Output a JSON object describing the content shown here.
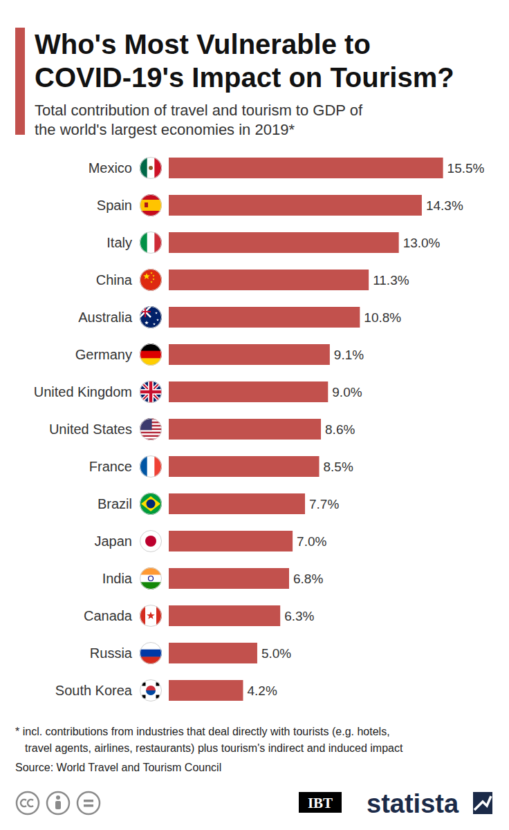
{
  "chart_data": {
    "type": "bar",
    "orientation": "horizontal",
    "title": [
      "Who's Most Vulnerable to",
      "COVID-19's Impact on Tourism?"
    ],
    "subtitle": [
      "Total contribution of travel and tourism to GDP of",
      "the world's largest economies in 2019*"
    ],
    "categories": [
      "Mexico",
      "Spain",
      "Italy",
      "China",
      "Australia",
      "Germany",
      "United Kingdom",
      "United States",
      "France",
      "Brazil",
      "Japan",
      "India",
      "Canada",
      "Russia",
      "South Korea"
    ],
    "values": [
      15.5,
      14.3,
      13.0,
      11.3,
      10.8,
      9.1,
      9.0,
      8.6,
      8.5,
      7.7,
      7.0,
      6.8,
      6.3,
      5.0,
      4.2
    ],
    "value_labels": [
      "15.5%",
      "14.3%",
      "13.0%",
      "11.3%",
      "10.8%",
      "9.1%",
      "9.0%",
      "8.6%",
      "8.5%",
      "7.7%",
      "7.0%",
      "6.8%",
      "6.3%",
      "5.0%",
      "4.2%"
    ],
    "color": "#c2514d",
    "xlim": [
      0,
      17
    ],
    "data_labels": true,
    "tick_labels": "y",
    "grid": false,
    "footnote": [
      "* incl. contributions from industries that deal directly with tourists (e.g. hotels,",
      "travel agents, airlines, restaurants) plus tourism's indirect and induced impact"
    ],
    "source": "Source: World Travel and Tourism Council",
    "logos": [
      "IBT",
      "statista"
    ]
  }
}
